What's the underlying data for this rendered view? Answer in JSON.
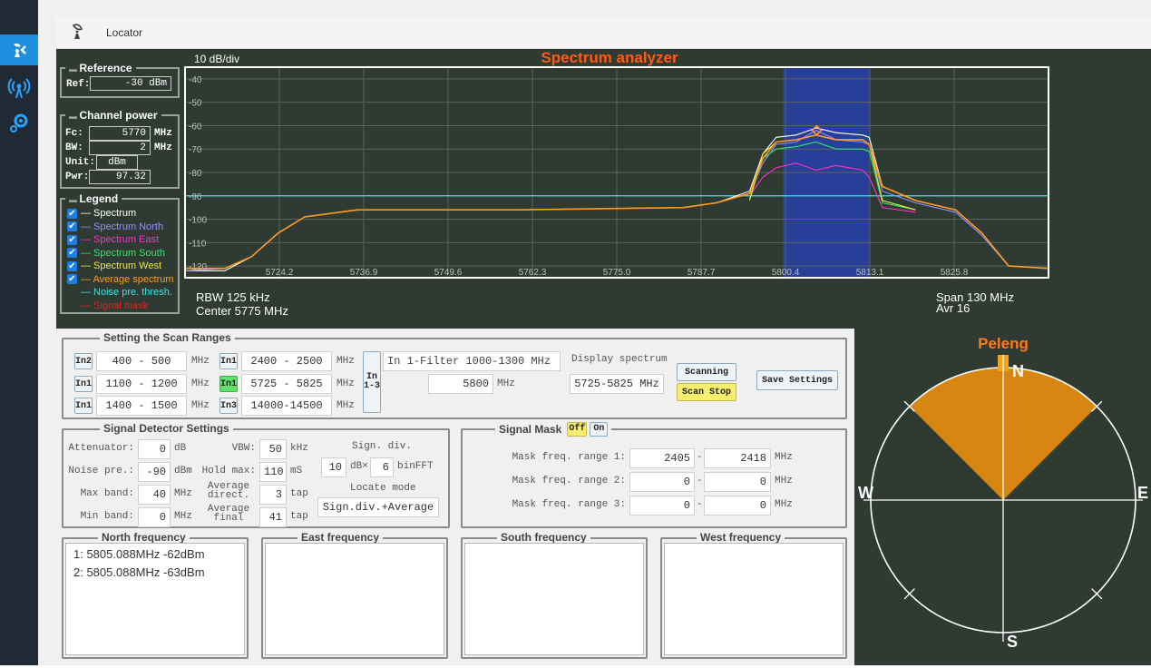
{
  "app": {
    "tab_label": "Locator"
  },
  "spectrum": {
    "title": "Spectrum analyzer",
    "scale": "10 dB/div",
    "rbw": "RBW 125 kHz",
    "center": "Center 5775 MHz",
    "span": "Span 130 MHz",
    "avr": "Avr 16",
    "y_ticks": [
      "-40",
      "-50",
      "-60",
      "-70",
      "-80",
      "-90",
      "-100",
      "-110",
      "-120"
    ],
    "x_ticks": [
      "5724.2",
      "5736.9",
      "5749.6",
      "5762.3",
      "5775.0",
      "5787.7",
      "5800.4",
      "5813.1",
      "5825.8"
    ]
  },
  "reference": {
    "title": "Reference",
    "ref_label": "Ref:",
    "ref_value": "-30 dBm"
  },
  "channel_power": {
    "title": "Channel power",
    "fc_label": "Fc:",
    "fc_value": "5770",
    "fc_unit": "MHz",
    "bw_label": "BW:",
    "bw_value": "2",
    "bw_unit": "MHz",
    "unit_label": "Unit:",
    "unit_value": "dBm",
    "pwr_label": "Pwr:",
    "pwr_value": "97.32"
  },
  "legend": {
    "title": "Legend",
    "items": [
      {
        "label": "Spectrum",
        "color": "#ffffff",
        "checked": true
      },
      {
        "label": "Spectrum North",
        "color": "#8f8fff",
        "checked": true
      },
      {
        "label": "Spectrum East",
        "color": "#ff2bd0",
        "checked": true
      },
      {
        "label": "Spectrum South",
        "color": "#2fe36b",
        "checked": true
      },
      {
        "label": "Spectrum West",
        "color": "#f2e640",
        "checked": true
      },
      {
        "label": "Average spectrum",
        "color": "#ff9a1e",
        "checked": true
      },
      {
        "label": "Noise pre. thresh.",
        "color": "#34e6e6",
        "checked": false
      },
      {
        "label": "Signal mask",
        "color": "#e62020",
        "checked": false
      }
    ]
  },
  "scan_ranges": {
    "title": "Setting the Scan Ranges",
    "mhz": "MHz",
    "rows": [
      {
        "btn": "In2",
        "range": "400 - 500"
      },
      {
        "btn": "In1",
        "range": "1100 - 1200"
      },
      {
        "btn": "In1",
        "range": "1400 - 1500"
      }
    ],
    "rows2": [
      {
        "btn": "In1",
        "range": "2400 - 2500"
      },
      {
        "btn": "In1",
        "range": "5725 - 5825"
      },
      {
        "btn": "In3",
        "range": "14000-14500"
      }
    ],
    "in_btn_line1": "In",
    "in_btn_line2": "1-3",
    "filter": "In 1-Filter 1000-1300 MHz",
    "freq_value": "5800",
    "display_label": "Display spectrum",
    "display_value": "5725-5825 MHz",
    "scanning": "Scanning",
    "scan_stop": "Scan Stop",
    "save": "Save Settings"
  },
  "detector": {
    "title": "Signal Detector Settings",
    "attenuator_label": "Attenuator:",
    "attenuator_value": "0",
    "attenuator_unit": "dB",
    "noise_label": "Noise pre.:",
    "noise_value": "-90",
    "noise_unit": "dBm",
    "maxband_label": "Max band:",
    "maxband_value": "40",
    "maxband_unit": "MHz",
    "minband_label": "Min band:",
    "minband_value": "0",
    "minband_unit": "MHz",
    "vbw_label": "VBW:",
    "vbw_value": "50",
    "vbw_unit": "kHz",
    "holdmax_label": "Hold max:",
    "holdmax_value": "110",
    "holdmax_unit": "mS",
    "avgdir_label1": "Average",
    "avgdir_label2": "direct.",
    "avgdir_value": "3",
    "avgdir_unit": "tap",
    "avgfin_label1": "Average",
    "avgfin_label2": "final",
    "avgfin_value": "41",
    "avgfin_unit": "tap",
    "signdiv_label": "Sign. div.",
    "signdiv_value1": "10",
    "signdiv_x": "dB×",
    "signdiv_value2": "6",
    "signdiv_unit": "binFFT",
    "locate_label": "Locate mode",
    "locate_value": "Sign.div.+Average"
  },
  "mask": {
    "title": "Signal Mask",
    "off": "Off",
    "on": "On",
    "rows": [
      {
        "label": "Mask freq. range 1:",
        "from": "2405",
        "to": "2418"
      },
      {
        "label": "Mask freq. range 2:",
        "from": "0",
        "to": "0"
      },
      {
        "label": "Mask freq. range 3:",
        "from": "0",
        "to": "0"
      }
    ],
    "dash": "-",
    "unit": "MHz"
  },
  "frequencies": {
    "north_title": "North frequency",
    "east_title": "East frequency",
    "south_title": "South frequency",
    "west_title": "West frequency",
    "north_lines": [
      "1: 5805.088MHz  -62dBm",
      "2: 5805.088MHz  -63dBm"
    ]
  },
  "peleng": {
    "title": "Peleng",
    "n": "N",
    "e": "E",
    "s": "S",
    "w": "W",
    "bearing_deg": 0,
    "sector_deg": 90,
    "sector_color": "#d88612",
    "title_color": "#ff7a1a"
  },
  "chart_data": {
    "type": "line",
    "title": "Spectrum analyzer",
    "xlabel": "",
    "ylabel": "",
    "xlim": [
      5710,
      5840
    ],
    "ylim": [
      -125,
      -35
    ],
    "x_ticks": [
      5724.2,
      5736.9,
      5749.6,
      5762.3,
      5775.0,
      5787.7,
      5800.4,
      5813.1,
      5825.8
    ],
    "y_ticks": [
      -40,
      -50,
      -60,
      -70,
      -80,
      -90,
      -100,
      -110,
      -120
    ],
    "threshold": -90,
    "highlight_band": [
      5800,
      5813
    ],
    "marker": {
      "x": 5805.1,
      "y": -62
    },
    "series": [
      {
        "name": "Spectrum",
        "color": "#ffffff",
        "x": [
          5710,
          5716,
          5720,
          5724,
          5728,
          5736,
          5760,
          5785,
          5790,
          5795,
          5797,
          5799,
          5802,
          5805,
          5808,
          5812,
          5813,
          5815,
          5820,
          5826,
          5830,
          5834,
          5840
        ],
        "y": [
          -122,
          -122,
          -116,
          -106,
          -99,
          -96,
          -96,
          -95,
          -93,
          -88,
          -72,
          -65,
          -64,
          -61,
          -63,
          -64,
          -65,
          -86,
          -92,
          -96,
          -106,
          -120,
          -121
        ]
      },
      {
        "name": "Spectrum North",
        "color": "#8f8fff",
        "x": [
          5710,
          5716,
          5720,
          5724,
          5728,
          5736,
          5760,
          5785,
          5790,
          5795,
          5797,
          5799,
          5802,
          5805,
          5808,
          5812,
          5813,
          5815,
          5820,
          5826,
          5830,
          5834,
          5840
        ],
        "y": [
          -122,
          -121,
          -116,
          -106,
          -99,
          -96,
          -96,
          -95,
          -93,
          -89,
          -76,
          -68,
          -67,
          -62,
          -66,
          -67,
          -68,
          -88,
          -93,
          -97,
          -107,
          -120,
          -121
        ]
      },
      {
        "name": "Spectrum East",
        "color": "#ff2bd0",
        "x": [
          5795,
          5797,
          5799,
          5802,
          5805,
          5808,
          5812,
          5813,
          5815,
          5820
        ],
        "y": [
          -90,
          -82,
          -78,
          -76,
          -79,
          -77,
          -79,
          -82,
          -95,
          -97
        ]
      },
      {
        "name": "Spectrum South",
        "color": "#2fe36b",
        "x": [
          5795,
          5797,
          5799,
          5802,
          5805,
          5808,
          5812,
          5813,
          5815,
          5820
        ],
        "y": [
          -91,
          -74,
          -70,
          -69,
          -67,
          -70,
          -70,
          -71,
          -93,
          -96
        ]
      },
      {
        "name": "Spectrum West",
        "color": "#f2e640",
        "x": [
          5795,
          5797,
          5799,
          5802,
          5805,
          5808,
          5812,
          5813,
          5815,
          5820
        ],
        "y": [
          -92,
          -72,
          -67,
          -66,
          -64,
          -66,
          -66,
          -68,
          -92,
          -96
        ]
      },
      {
        "name": "Average spectrum",
        "color": "#ff9a1e",
        "x": [
          5710,
          5716,
          5720,
          5724,
          5728,
          5736,
          5760,
          5785,
          5790,
          5795,
          5797,
          5799,
          5802,
          5805,
          5808,
          5812,
          5813,
          5815,
          5820,
          5826,
          5830,
          5834,
          5840
        ],
        "y": [
          -121,
          -121,
          -116,
          -106,
          -99,
          -96,
          -96,
          -95,
          -93,
          -89,
          -74,
          -67,
          -66,
          -64,
          -66,
          -66,
          -68,
          -86,
          -92,
          -96,
          -106,
          -120,
          -121
        ]
      }
    ]
  },
  "colors": {
    "panel_bg": "#2f3b32",
    "plot_bg": "#2f3b32",
    "band": "#283f9a",
    "threshold": "#34e6e6",
    "title": "#ff5a14",
    "sidebar": "#1f2a35",
    "sidebar_active": "#1d8fe0"
  },
  "icons": {
    "sidebar": [
      "locator-icon",
      "radio-signal-icon",
      "settings-gear-icon"
    ],
    "tab": "satellite-dish-icon"
  }
}
